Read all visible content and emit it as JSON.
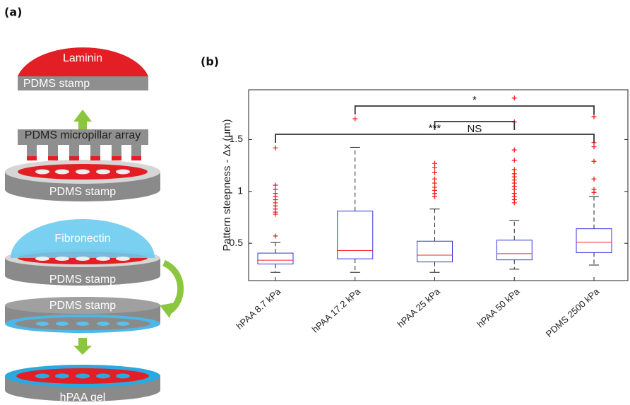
{
  "panel_labels": [
    "(a)",
    "(b)"
  ],
  "diagram": {
    "labels": [
      "Laminin",
      "PDMS stamp",
      "PDMS micropillar array",
      "PDMS stamp",
      "Fibronectin",
      "PDMS stamp",
      "PDMS stamp",
      "hPAA gel"
    ]
  },
  "chart_data": {
    "type": "box",
    "y_label": "Pattern steepness - Δx (μm)",
    "categories": [
      "hPAA 8.7 kPa",
      "hPAA 17.2 kPa",
      "hPAA 25 kPa",
      "hPAA 50 kPa",
      "PDMS 2500 kPa"
    ],
    "boxes": [
      {
        "whisker_low": 0.22,
        "q1": 0.3,
        "median": 0.337,
        "q3": 0.405,
        "whisker_high": 0.507,
        "outliers": [
          1.42,
          1.06,
          1.02,
          0.98,
          0.95,
          0.92,
          0.89,
          0.86,
          0.83,
          0.8,
          0.78,
          0.57
        ]
      },
      {
        "whisker_low": 0.22,
        "q1": 0.35,
        "median": 0.43,
        "q3": 0.81,
        "whisker_high": 1.425,
        "outliers": [
          1.7
        ]
      },
      {
        "whisker_low": 0.22,
        "q1": 0.32,
        "median": 0.385,
        "q3": 0.52,
        "whisker_high": 0.83,
        "outliers": [
          1.27,
          1.23,
          1.18,
          1.12,
          1.08,
          1.04,
          1.01,
          0.98,
          0.95
        ]
      },
      {
        "whisker_low": 0.25,
        "q1": 0.34,
        "median": 0.4,
        "q3": 0.53,
        "whisker_high": 0.72,
        "outliers": [
          1.9,
          1.67,
          1.4,
          1.3,
          1.21,
          1.17,
          1.14,
          1.11,
          1.08,
          1.05,
          1.02,
          0.98,
          0.95,
          0.92,
          0.89
        ]
      },
      {
        "whisker_low": 0.29,
        "q1": 0.41,
        "median": 0.51,
        "q3": 0.64,
        "whisker_high": 0.95,
        "outliers": [
          1.72,
          1.47,
          1.43,
          1.29,
          1.12,
          1.02,
          0.99
        ]
      }
    ],
    "box_color": "#3333dd",
    "median_color": "#ff2222",
    "outlier_color": "#ee1111",
    "whisker_color": "#222222",
    "ylim": [
      0.14,
      1.98
    ],
    "yticks": [
      0.5,
      1,
      1.5
    ],
    "annotations": [
      {
        "text": "*",
        "between": [
          "hPAA 17.2 kPa",
          "PDMS 2500 kPa"
        ]
      },
      {
        "text": "NS",
        "between": [
          "hPAA 25 kPa",
          "hPAA 50 kPa"
        ]
      },
      {
        "text": "***",
        "between": [
          "hPAA 8.7 kPa",
          "PDMS 2500 kPa"
        ]
      }
    ]
  }
}
